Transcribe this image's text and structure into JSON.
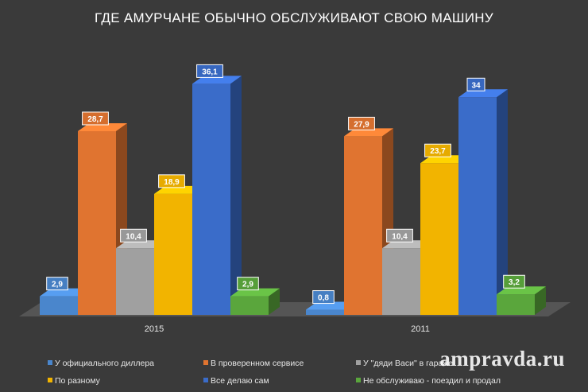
{
  "chart_data": {
    "type": "bar",
    "title": "ГДЕ АМУРЧАНЕ ОБЫЧНО ОБСЛУЖИВАЮТ  СВОЮ МАШИНУ",
    "categories": [
      "2015",
      "2011"
    ],
    "series": [
      {
        "name": "У официального диллера",
        "color": "#4a86cc",
        "values": [
          2.9,
          0.8
        ],
        "labels": [
          "2,9",
          "0,8"
        ]
      },
      {
        "name": "В проверенном сервисе",
        "color": "#e07430",
        "values": [
          28.7,
          27.9
        ],
        "labels": [
          "28,7",
          "27,9"
        ]
      },
      {
        "name": "У \"дяди Васи\" в гараже",
        "color": "#a0a0a0",
        "values": [
          10.4,
          10.4
        ],
        "labels": [
          "10,4",
          "10,4"
        ]
      },
      {
        "name": "По разному",
        "color": "#f2b400",
        "values": [
          18.9,
          23.7
        ],
        "labels": [
          "18,9",
          "23,7"
        ]
      },
      {
        "name": "Все делаю сам",
        "color": "#3a6cc9",
        "values": [
          36.1,
          34
        ],
        "labels": [
          "36,1",
          "34"
        ]
      },
      {
        "name": "Не обслуживаю - поездил и продал",
        "color": "#5aa63c",
        "values": [
          2.9,
          3.2
        ],
        "labels": [
          "2,9",
          "3,2"
        ]
      }
    ],
    "legend_position": "bottom",
    "grid": false
  },
  "watermark": "ampravda.ru"
}
